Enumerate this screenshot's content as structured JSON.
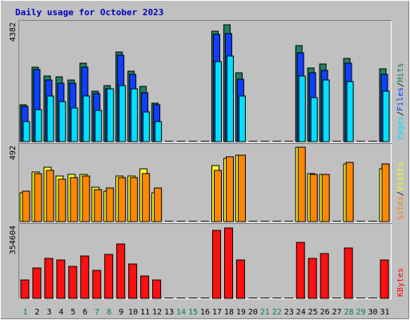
{
  "chart_data": {
    "type": "bar",
    "title": "Daily usage for October 2023",
    "days": [
      "1",
      "2",
      "3",
      "4",
      "5",
      "6",
      "7",
      "8",
      "9",
      "10",
      "11",
      "12",
      "13",
      "14",
      "15",
      "16",
      "17",
      "18",
      "19",
      "20",
      "21",
      "22",
      "23",
      "24",
      "25",
      "26",
      "27",
      "28",
      "29",
      "30",
      "31"
    ],
    "weekend_days": [
      "1",
      "7",
      "8",
      "14",
      "15",
      "21",
      "22",
      "28",
      "29"
    ],
    "panels": [
      {
        "id": "hits",
        "max_label": "4382",
        "max": 4382,
        "labels": [
          {
            "text": "Pages",
            "color": "#00e0ff"
          },
          {
            "text": "/",
            "color": "#000000"
          },
          {
            "text": "Files",
            "color": "#0040ff"
          },
          {
            "text": "/",
            "color": "#000000"
          },
          {
            "text": "Hits",
            "color": "#008040"
          }
        ],
        "series": [
          {
            "name": "Hits",
            "color": "#208060",
            "values": [
              1380,
              2770,
              2440,
              2410,
              2310,
              2910,
              1890,
              2080,
              3330,
              2610,
              2060,
              1440,
              0,
              0,
              0,
              0,
              4120,
              4350,
              2570,
              0,
              0,
              0,
              0,
              3580,
              2740,
              2900,
              0,
              3100,
              0,
              0,
              2720
            ]
          },
          {
            "name": "Files",
            "color": "#1040ff",
            "values": [
              1300,
              2670,
              2310,
              2170,
              2190,
              2770,
              1780,
              1980,
              3220,
              2490,
              1830,
              1360,
              0,
              0,
              0,
              0,
              3990,
              4020,
              2340,
              0,
              0,
              0,
              0,
              3310,
              2560,
              2650,
              0,
              2930,
              0,
              0,
              2510
            ]
          },
          {
            "name": "Pages",
            "color": "#00e0ff",
            "values": [
              740,
              1200,
              1690,
              1500,
              1250,
              1690,
              1170,
              1960,
              2100,
              1970,
              1090,
              740,
              0,
              0,
              0,
              0,
              2970,
              3180,
              1690,
              0,
              0,
              0,
              0,
              2440,
              1650,
              2290,
              0,
              2240,
              0,
              0,
              1890
            ]
          }
        ]
      },
      {
        "id": "visits",
        "max_label": "492",
        "max": 492,
        "labels": [
          {
            "text": "Sites",
            "color": "#ff8000"
          },
          {
            "text": "/",
            "color": "#000000"
          },
          {
            "text": "Visits",
            "color": "#ffff00"
          }
        ],
        "series": [
          {
            "name": "Visits",
            "color": "#ffff30",
            "values": [
              190,
              330,
              360,
              300,
              310,
              310,
              230,
              200,
              300,
              300,
              350,
              190,
              0,
              0,
              0,
              0,
              370,
              420,
              440,
              0,
              0,
              0,
              0,
              490,
              320,
              310,
              0,
              380,
              0,
              0,
              350
            ]
          },
          {
            "name": "Sites",
            "color": "#ff8800",
            "values": [
              200,
              320,
              340,
              280,
              290,
              300,
              210,
              220,
              290,
              290,
              320,
              220,
              0,
              0,
              0,
              0,
              340,
              430,
              440,
              0,
              0,
              0,
              0,
              490,
              310,
              310,
              0,
              390,
              0,
              0,
              380
            ]
          }
        ]
      },
      {
        "id": "kbytes",
        "max_label": "354604",
        "max": 354604,
        "labels": [
          {
            "text": "KBytes",
            "color": "#ff0000"
          }
        ],
        "series": [
          {
            "name": "KBytes",
            "color": "#ff1010",
            "values": [
              90000,
              150000,
              200000,
              190000,
              160000,
              210000,
              140000,
              220000,
              270000,
              170000,
              110000,
              90000,
              0,
              0,
              0,
              0,
              340000,
              350000,
              190000,
              0,
              0,
              0,
              0,
              280000,
              200000,
              225000,
              0,
              250000,
              0,
              0,
              190000
            ]
          }
        ]
      }
    ]
  }
}
